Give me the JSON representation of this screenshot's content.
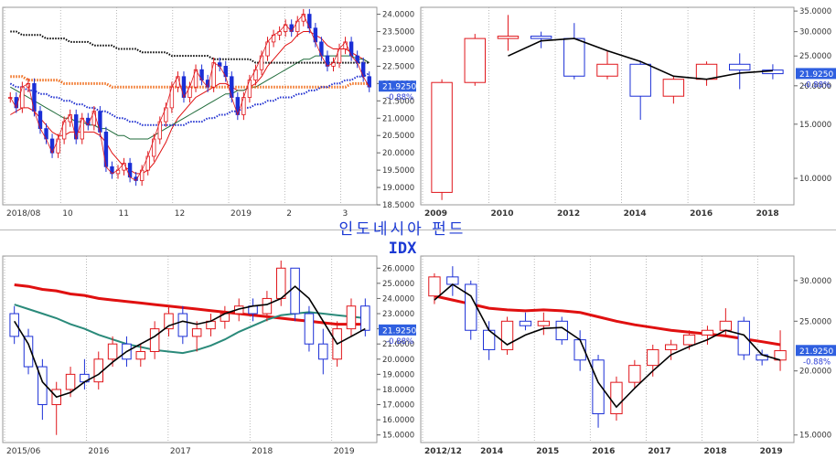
{
  "title": "인도네시아 펀드",
  "subtitle": "IDX",
  "colors": {
    "up": "#e0161b",
    "down": "#1b2fd6",
    "price_box": "#2f5fe0",
    "ma_red": "#e01010",
    "ma_green": "#1f6b3a",
    "ma_teal": "#2a8a7a",
    "ma_black": "#000000",
    "ma_orange": "#f07020",
    "ma_blue": "#1f2fd0"
  },
  "chart_data": [
    {
      "id": "daily",
      "type": "line",
      "title": "",
      "x_labels": [
        "2018/08",
        "10",
        "11",
        "12",
        "2019",
        "2",
        "3"
      ],
      "y_ticks": [
        "24.0000",
        "23.5000",
        "23.0000",
        "22.5000",
        "22.0000",
        "21.5000",
        "21.0000",
        "20.5000",
        "20.0000",
        "19.5000",
        "19.0000",
        "18.5000"
      ],
      "ylim": [
        18.5,
        24.2
      ],
      "last_value": "21.9250",
      "change": "-0.88%",
      "series": [
        {
          "role": "price",
          "color": "#e0161b",
          "values": [
            21.6,
            21.3,
            21.9,
            22.0,
            21.2,
            20.7,
            20.4,
            20.0,
            20.4,
            20.9,
            21.1,
            20.4,
            21.0,
            20.8,
            21.2,
            20.6,
            19.6,
            19.4,
            19.5,
            19.7,
            19.3,
            19.2,
            19.5,
            19.9,
            20.4,
            20.9,
            21.3,
            21.9,
            22.2,
            21.6,
            21.9,
            22.4,
            22.1,
            21.9,
            22.6,
            22.5,
            22.2,
            21.6,
            21.1,
            21.6,
            22.1,
            22.4,
            22.8,
            23.2,
            23.4,
            23.5,
            23.7,
            23.5,
            23.8,
            24.0,
            23.6,
            23.2,
            22.8,
            22.5,
            22.6,
            23.0,
            23.2,
            22.8,
            22.6,
            22.2,
            21.9
          ]
        },
        {
          "role": "ma",
          "color": "#e01010",
          "values": [
            21.1,
            21.2,
            21.3,
            21.3,
            21.2,
            21.0,
            20.8,
            20.6,
            20.5,
            20.5,
            20.6,
            20.6,
            20.6,
            20.6,
            20.6,
            20.5,
            20.3,
            20.0,
            19.8,
            19.6,
            19.5,
            19.4,
            19.4,
            19.5,
            19.7,
            20.0,
            20.3,
            20.7,
            21.0,
            21.2,
            21.4,
            21.6,
            21.7,
            21.8,
            21.9,
            22.0,
            22.0,
            21.9,
            21.8,
            21.8,
            21.9,
            22.0,
            22.2,
            22.5,
            22.7,
            22.9,
            23.1,
            23.2,
            23.4,
            23.5,
            23.5,
            23.4,
            23.3,
            23.1,
            23.0,
            23.0,
            23.0,
            22.9,
            22.8,
            22.7,
            22.6
          ]
        },
        {
          "role": "ma",
          "color": "#1f6b3a",
          "values": [
            21.9,
            21.8,
            21.7,
            21.6,
            21.5,
            21.4,
            21.3,
            21.2,
            21.1,
            21.0,
            21.0,
            20.9,
            20.9,
            20.8,
            20.8,
            20.7,
            20.7,
            20.6,
            20.5,
            20.5,
            20.4,
            20.4,
            20.4,
            20.4,
            20.5,
            20.6,
            20.7,
            20.8,
            20.9,
            21.0,
            21.1,
            21.2,
            21.3,
            21.4,
            21.5,
            21.6,
            21.7,
            21.7,
            21.8,
            21.8,
            21.9,
            21.9,
            22.0,
            22.1,
            22.2,
            22.3,
            22.4,
            22.5,
            22.6,
            22.7,
            22.7,
            22.8,
            22.8,
            22.8,
            22.8,
            22.8,
            22.8,
            22.8,
            22.7,
            22.7,
            22.6
          ]
        },
        {
          "role": "ma",
          "color": "#000000",
          "style": "dotted",
          "values": [
            23.5,
            23.5,
            23.4,
            23.4,
            23.4,
            23.4,
            23.3,
            23.3,
            23.3,
            23.3,
            23.2,
            23.2,
            23.2,
            23.2,
            23.1,
            23.1,
            23.1,
            23.1,
            23.0,
            23.0,
            23.0,
            23.0,
            22.9,
            22.9,
            22.9,
            22.9,
            22.9,
            22.8,
            22.8,
            22.8,
            22.8,
            22.8,
            22.8,
            22.8,
            22.7,
            22.7,
            22.7,
            22.7,
            22.7,
            22.7,
            22.7,
            22.6,
            22.6,
            22.6,
            22.6,
            22.6,
            22.6,
            22.6,
            22.6,
            22.6,
            22.6,
            22.6,
            22.6,
            22.6,
            22.6,
            22.6,
            22.6,
            22.6,
            22.6,
            22.6,
            22.6
          ]
        },
        {
          "role": "ma",
          "color": "#f07020",
          "style": "dotted",
          "values": [
            22.2,
            22.2,
            22.2,
            22.1,
            22.1,
            22.1,
            22.1,
            22.1,
            22.1,
            22.0,
            22.0,
            22.0,
            22.0,
            22.0,
            22.0,
            22.0,
            22.0,
            21.9,
            21.9,
            21.9,
            21.9,
            21.9,
            21.9,
            21.9,
            21.9,
            21.9,
            21.9,
            21.9,
            21.9,
            21.9,
            21.9,
            21.9,
            21.9,
            21.9,
            21.9,
            21.9,
            21.9,
            21.9,
            21.9,
            21.9,
            21.9,
            21.9,
            21.9,
            21.9,
            21.9,
            21.9,
            21.9,
            21.9,
            21.9,
            21.9,
            21.9,
            21.9,
            21.9,
            21.9,
            21.9,
            21.9,
            21.9,
            22.0,
            22.0,
            22.0,
            22.0
          ]
        },
        {
          "role": "ma",
          "color": "#1f2fd0",
          "style": "dotted",
          "values": [
            22.0,
            21.9,
            21.9,
            21.8,
            21.8,
            21.7,
            21.7,
            21.6,
            21.6,
            21.5,
            21.5,
            21.4,
            21.4,
            21.3,
            21.3,
            21.2,
            21.2,
            21.1,
            21.0,
            21.0,
            20.9,
            20.9,
            20.8,
            20.8,
            20.8,
            20.8,
            20.8,
            20.8,
            20.8,
            20.8,
            20.9,
            20.9,
            20.9,
            21.0,
            21.0,
            21.1,
            21.1,
            21.2,
            21.2,
            21.3,
            21.3,
            21.4,
            21.4,
            21.5,
            21.5,
            21.6,
            21.6,
            21.6,
            21.7,
            21.7,
            21.8,
            21.8,
            21.9,
            21.9,
            22.0,
            22.0,
            22.1,
            22.1,
            22.2,
            22.2,
            22.3
          ]
        }
      ]
    },
    {
      "id": "yearly",
      "type": "candlestick",
      "title": "",
      "x_labels": [
        "2009",
        "2010",
        "2012",
        "2014",
        "2016",
        "2018"
      ],
      "y_ticks": [
        "35.0000",
        "30.0000",
        "25.0000",
        "20.0000",
        "15.0000",
        "10.0000"
      ],
      "ylim": [
        8.2,
        36
      ],
      "scale": "log",
      "last_value": "21.9250",
      "change": "-0.88%",
      "candles": [
        {
          "o": 9.0,
          "h": 21.0,
          "l": 8.5,
          "c": 20.5
        },
        {
          "o": 20.5,
          "h": 29.5,
          "l": 20.0,
          "c": 28.5
        },
        {
          "o": 28.5,
          "h": 34.0,
          "l": 26.0,
          "c": 29.0
        },
        {
          "o": 29.0,
          "h": 30.0,
          "l": 26.5,
          "c": 28.5
        },
        {
          "o": 28.5,
          "h": 32.0,
          "l": 21.0,
          "c": 21.5
        },
        {
          "o": 21.5,
          "h": 26.0,
          "l": 21.0,
          "c": 23.5
        },
        {
          "o": 23.5,
          "h": 24.0,
          "l": 15.5,
          "c": 18.5
        },
        {
          "o": 18.5,
          "h": 21.5,
          "l": 17.5,
          "c": 21.0
        },
        {
          "o": 21.0,
          "h": 24.0,
          "l": 20.0,
          "c": 23.5
        },
        {
          "o": 23.5,
          "h": 25.5,
          "l": 19.5,
          "c": 22.5
        },
        {
          "o": 22.5,
          "h": 23.5,
          "l": 21.0,
          "c": 21.9
        }
      ],
      "ma": [
        null,
        null,
        25.0,
        28.0,
        28.5,
        26.0,
        24.0,
        21.5,
        21.0,
        22.0,
        22.4
      ]
    },
    {
      "id": "weekly",
      "type": "candlestick",
      "title": "",
      "x_labels": [
        "2015/06",
        "2016",
        "2017",
        "2018",
        "2019"
      ],
      "y_ticks": [
        "26.0000",
        "25.0000",
        "24.0000",
        "23.0000",
        "22.0000",
        "21.0000",
        "20.0000",
        "19.0000",
        "18.0000",
        "17.0000",
        "16.0000",
        "15.0000"
      ],
      "ylim": [
        14.5,
        26.8
      ],
      "last_value": "21.9250",
      "change": "-0.88%",
      "candles": [
        {
          "o": 23.0,
          "h": 23.5,
          "l": 21.0,
          "c": 21.5
        },
        {
          "o": 21.5,
          "h": 22.0,
          "l": 19.0,
          "c": 19.5
        },
        {
          "o": 19.5,
          "h": 20.0,
          "l": 16.0,
          "c": 17.0
        },
        {
          "o": 17.0,
          "h": 18.5,
          "l": 15.0,
          "c": 18.0
        },
        {
          "o": 18.0,
          "h": 19.5,
          "l": 17.5,
          "c": 19.0
        },
        {
          "o": 19.0,
          "h": 20.0,
          "l": 18.0,
          "c": 18.5
        },
        {
          "o": 18.5,
          "h": 20.5,
          "l": 18.0,
          "c": 20.0
        },
        {
          "o": 20.0,
          "h": 21.5,
          "l": 19.5,
          "c": 21.0
        },
        {
          "o": 21.0,
          "h": 21.5,
          "l": 19.5,
          "c": 20.0
        },
        {
          "o": 20.0,
          "h": 21.0,
          "l": 19.5,
          "c": 20.5
        },
        {
          "o": 20.5,
          "h": 22.5,
          "l": 20.0,
          "c": 22.0
        },
        {
          "o": 22.0,
          "h": 23.5,
          "l": 21.5,
          "c": 23.0
        },
        {
          "o": 23.0,
          "h": 23.5,
          "l": 21.0,
          "c": 21.5
        },
        {
          "o": 21.5,
          "h": 22.5,
          "l": 20.5,
          "c": 22.0
        },
        {
          "o": 22.0,
          "h": 23.0,
          "l": 21.5,
          "c": 22.5
        },
        {
          "o": 22.5,
          "h": 23.5,
          "l": 22.0,
          "c": 23.0
        },
        {
          "o": 23.0,
          "h": 24.0,
          "l": 22.5,
          "c": 23.5
        },
        {
          "o": 23.5,
          "h": 24.0,
          "l": 22.5,
          "c": 23.0
        },
        {
          "o": 23.0,
          "h": 24.5,
          "l": 22.5,
          "c": 24.0
        },
        {
          "o": 24.0,
          "h": 26.5,
          "l": 23.5,
          "c": 26.0
        },
        {
          "o": 26.0,
          "h": 26.0,
          "l": 22.5,
          "c": 23.0
        },
        {
          "o": 23.0,
          "h": 23.5,
          "l": 20.5,
          "c": 21.0
        },
        {
          "o": 21.0,
          "h": 22.0,
          "l": 19.0,
          "c": 20.0
        },
        {
          "o": 20.0,
          "h": 22.5,
          "l": 19.5,
          "c": 22.0
        },
        {
          "o": 22.0,
          "h": 24.0,
          "l": 21.5,
          "c": 23.5
        },
        {
          "o": 23.5,
          "h": 24.0,
          "l": 21.5,
          "c": 21.9
        }
      ],
      "ma": [
        22.5,
        21.0,
        18.5,
        17.5,
        17.8,
        18.5,
        19.0,
        19.8,
        20.5,
        21.0,
        21.5,
        22.2,
        22.5,
        22.3,
        22.5,
        23.0,
        23.3,
        23.5,
        23.6,
        24.0,
        24.8,
        24.0,
        22.5,
        21.0,
        21.5,
        22.0
      ],
      "ma_red": [
        24.9,
        24.8,
        24.6,
        24.5,
        24.3,
        24.2,
        24.0,
        23.9,
        23.8,
        23.7,
        23.6,
        23.5,
        23.4,
        23.3,
        23.2,
        23.1,
        23.0,
        22.9,
        22.8,
        22.7,
        22.6,
        22.5,
        22.4,
        22.3,
        22.3,
        22.3
      ],
      "ma_teal": [
        23.6,
        23.3,
        23.0,
        22.7,
        22.3,
        22.0,
        21.6,
        21.3,
        21.0,
        20.8,
        20.6,
        20.5,
        20.4,
        20.6,
        20.9,
        21.3,
        21.8,
        22.2,
        22.6,
        22.9,
        23.0,
        23.1,
        23.0,
        22.9,
        22.8,
        22.7
      ]
    },
    {
      "id": "monthly",
      "type": "candlestick",
      "title": "",
      "x_labels": [
        "2012/12",
        "2014",
        "2015",
        "2016",
        "2017",
        "2018",
        "2019"
      ],
      "y_ticks": [
        "30.0000",
        "25.0000",
        "20.0000",
        "15.0000"
      ],
      "ylim": [
        14.5,
        33.5
      ],
      "scale": "log",
      "last_value": "21.9250",
      "change": "-0.88%",
      "candles": [
        {
          "o": 28.0,
          "h": 31.0,
          "l": 27.0,
          "c": 30.5
        },
        {
          "o": 30.5,
          "h": 32.0,
          "l": 28.0,
          "c": 29.5
        },
        {
          "o": 29.5,
          "h": 30.0,
          "l": 23.0,
          "c": 24.0
        },
        {
          "o": 24.0,
          "h": 25.0,
          "l": 21.0,
          "c": 22.0
        },
        {
          "o": 22.0,
          "h": 25.5,
          "l": 21.5,
          "c": 25.0
        },
        {
          "o": 25.0,
          "h": 26.0,
          "l": 24.0,
          "c": 24.5
        },
        {
          "o": 24.5,
          "h": 26.0,
          "l": 23.5,
          "c": 25.0
        },
        {
          "o": 25.0,
          "h": 25.5,
          "l": 22.5,
          "c": 23.0
        },
        {
          "o": 23.0,
          "h": 24.0,
          "l": 20.0,
          "c": 21.0
        },
        {
          "o": 21.0,
          "h": 21.5,
          "l": 15.5,
          "c": 16.5
        },
        {
          "o": 16.5,
          "h": 19.5,
          "l": 16.0,
          "c": 19.0
        },
        {
          "o": 19.0,
          "h": 21.0,
          "l": 18.5,
          "c": 20.5
        },
        {
          "o": 20.5,
          "h": 22.5,
          "l": 19.5,
          "c": 22.0
        },
        {
          "o": 22.0,
          "h": 23.0,
          "l": 21.0,
          "c": 22.5
        },
        {
          "o": 22.5,
          "h": 24.0,
          "l": 22.0,
          "c": 23.5
        },
        {
          "o": 23.5,
          "h": 24.5,
          "l": 22.5,
          "c": 24.0
        },
        {
          "o": 24.0,
          "h": 26.5,
          "l": 23.5,
          "c": 25.0
        },
        {
          "o": 25.0,
          "h": 25.5,
          "l": 21.0,
          "c": 21.5
        },
        {
          "o": 21.5,
          "h": 22.0,
          "l": 20.5,
          "c": 21.0
        },
        {
          "o": 21.0,
          "h": 24.0,
          "l": 20.0,
          "c": 21.9
        }
      ],
      "ma": [
        27.5,
        29.5,
        28.0,
        24.0,
        22.5,
        23.5,
        24.2,
        24.3,
        23.0,
        19.0,
        17.0,
        18.5,
        20.0,
        21.5,
        22.3,
        23.0,
        24.0,
        23.5,
        21.5,
        21.0
      ],
      "ma_red": [
        28.0,
        27.5,
        27.0,
        26.5,
        26.3,
        26.2,
        26.3,
        26.2,
        26.0,
        25.5,
        25.0,
        24.6,
        24.3,
        24.0,
        23.8,
        23.6,
        23.4,
        23.1,
        22.8,
        22.5
      ]
    }
  ]
}
